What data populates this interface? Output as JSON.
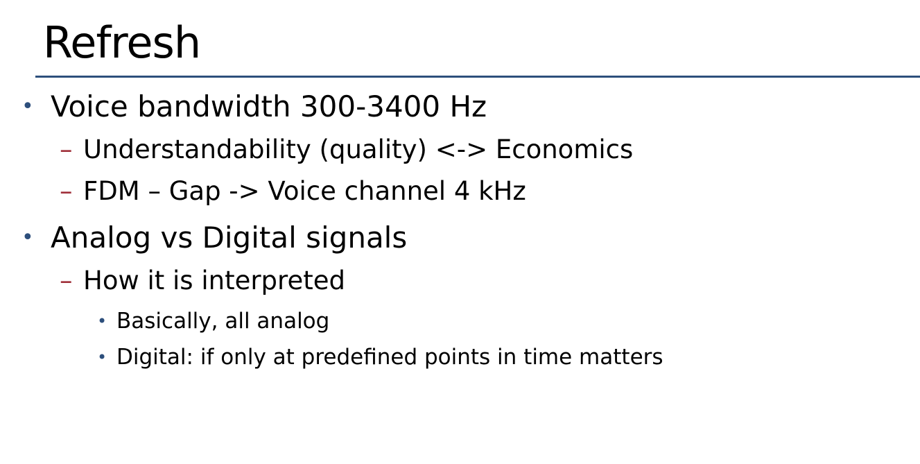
{
  "slide": {
    "title": "Refresh",
    "accent_color": "#2d4f7c",
    "dash_color": "#a0303a"
  },
  "bullets": [
    {
      "text": "Voice bandwidth 300-3400 Hz",
      "children": [
        {
          "text": "Understandability (quality) <-> Economics"
        },
        {
          "text": "FDM – Gap -> Voice channel 4 kHz"
        }
      ]
    },
    {
      "text": "Analog vs Digital signals",
      "children": [
        {
          "text": "How it is interpreted",
          "children": [
            {
              "text": "Basically, all analog"
            },
            {
              "text": "Digital: if only at predefined points in time matters"
            }
          ]
        }
      ]
    }
  ],
  "markers": {
    "level1": "•",
    "level2": "–",
    "level3": "•"
  }
}
